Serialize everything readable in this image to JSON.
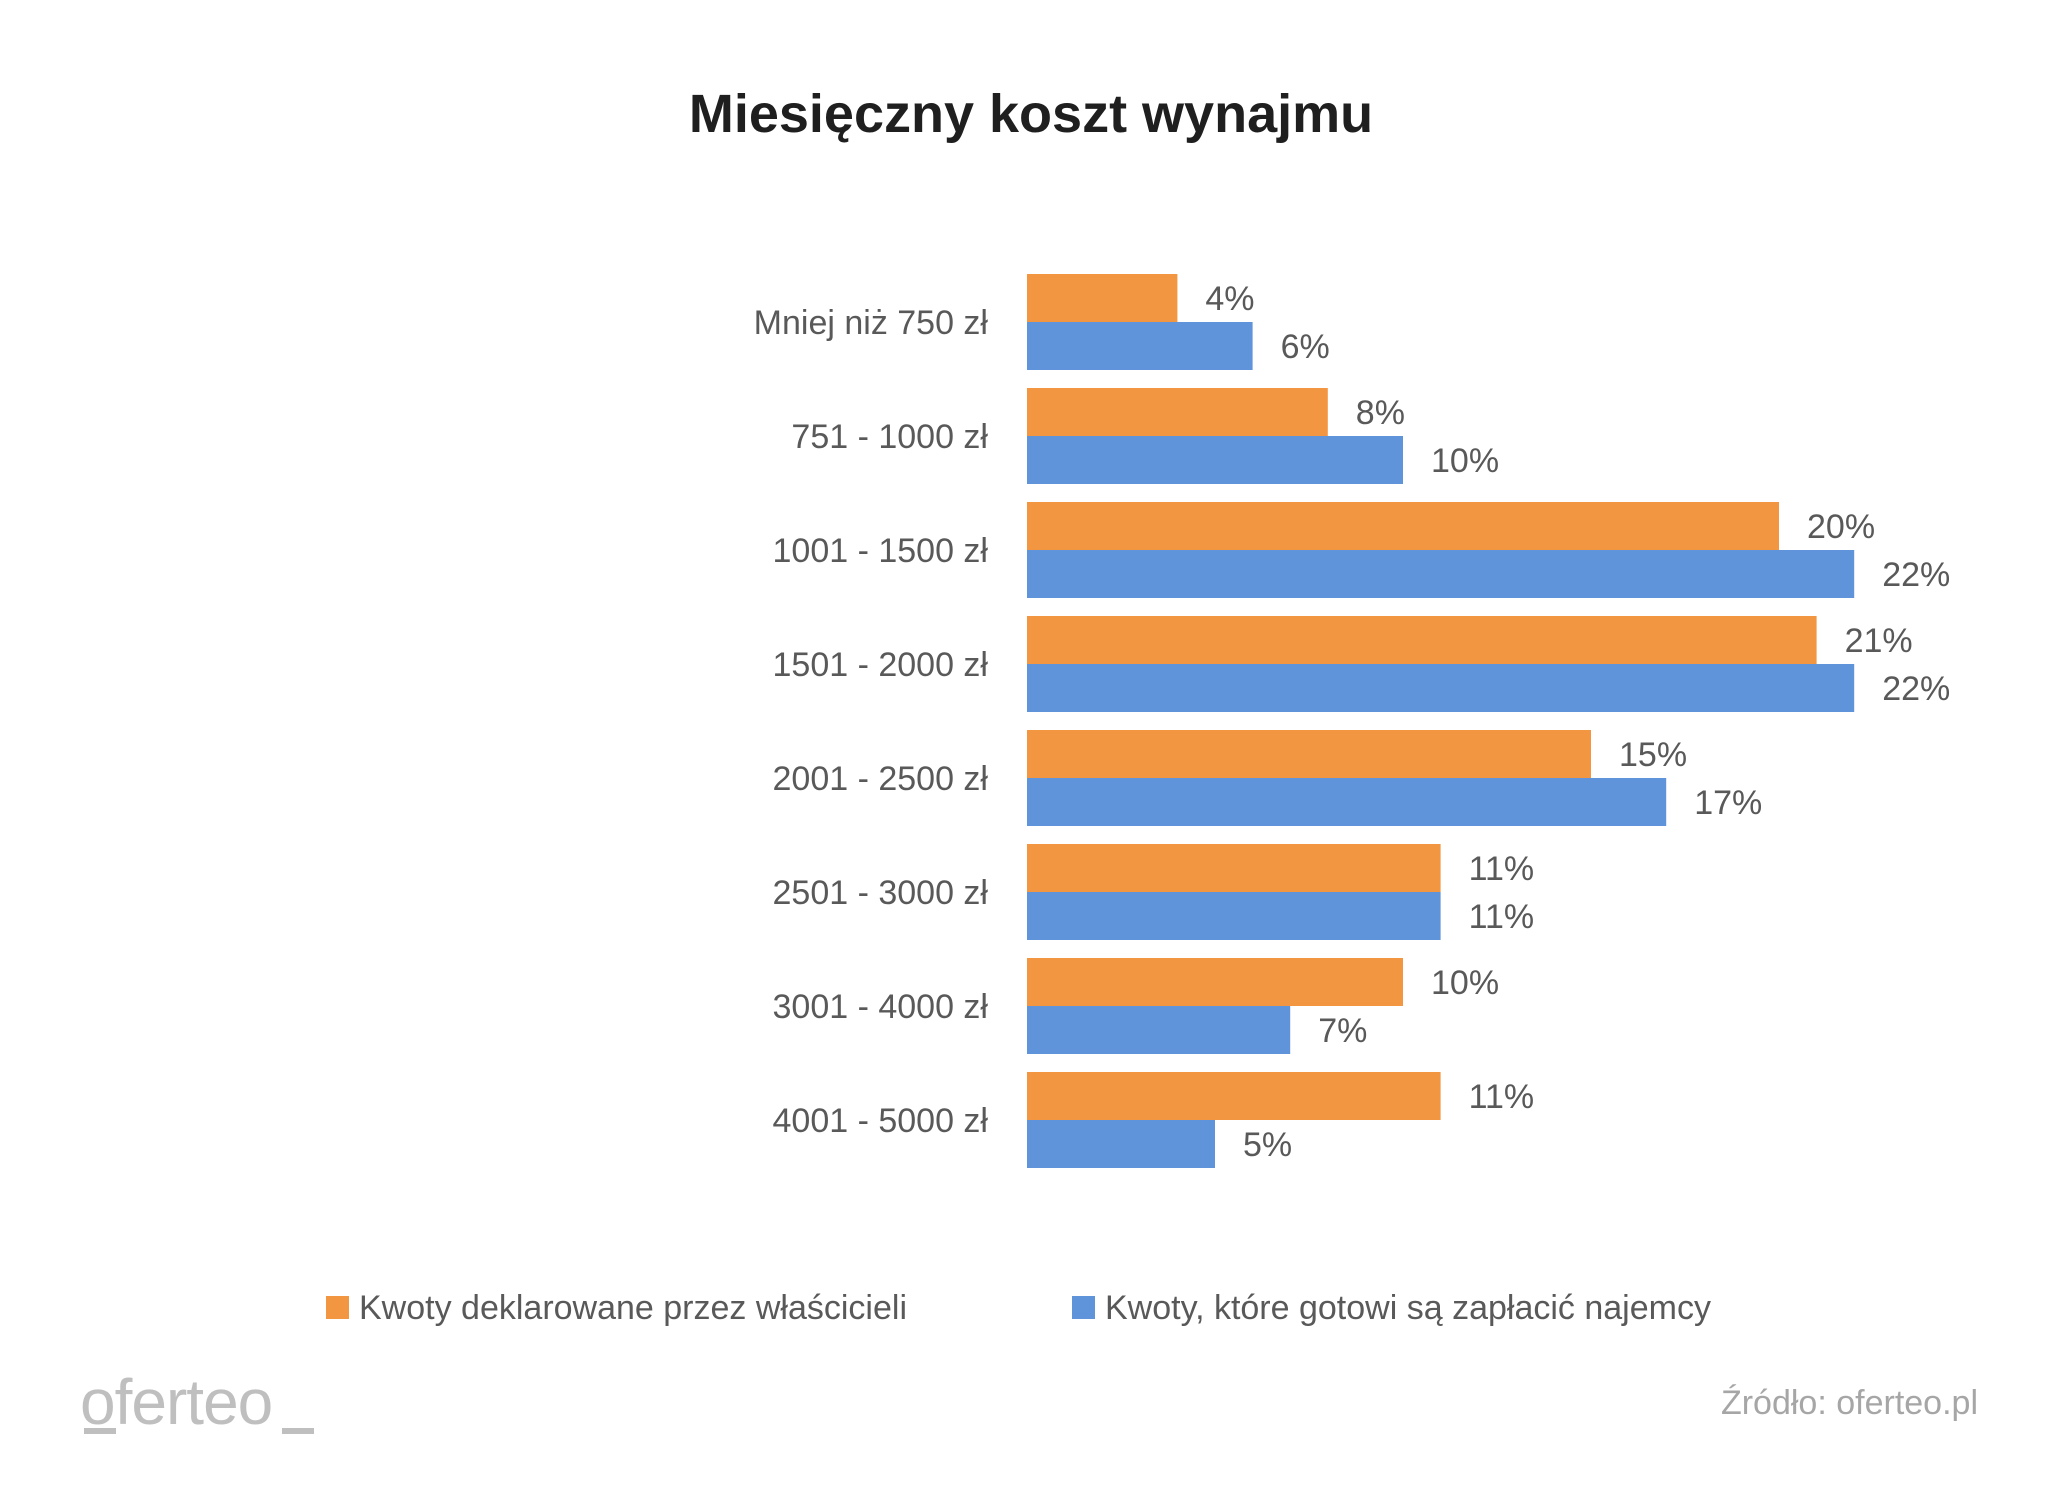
{
  "chart_data": {
    "type": "bar",
    "orientation": "horizontal",
    "title": "Miesięczny koszt wynajmu",
    "categories": [
      "Mniej niż 750 zł",
      "751 - 1000 zł",
      "1001 - 1500 zł",
      "1501 - 2000 zł",
      "2001 - 2500 zł",
      "2501 - 3000 zł",
      "3001 - 4000 zł",
      "4001 - 5000 zł"
    ],
    "series": [
      {
        "name": "Kwoty deklarowane przez właścicieli",
        "color": "#F39641",
        "values": [
          4,
          8,
          20,
          21,
          15,
          11,
          10,
          11
        ]
      },
      {
        "name": "Kwoty, które gotowi są zapłacić najemcy",
        "color": "#5F93DA",
        "values": [
          6,
          10,
          22,
          22,
          17,
          11,
          7,
          5
        ]
      }
    ],
    "value_suffix": "%",
    "xlabel": "",
    "ylabel": "",
    "xlim": [
      0,
      25
    ],
    "grid": false,
    "legend_position": "bottom"
  },
  "footer": {
    "logo": "oferteo",
    "source": "Źródło: oferteo.pl"
  }
}
